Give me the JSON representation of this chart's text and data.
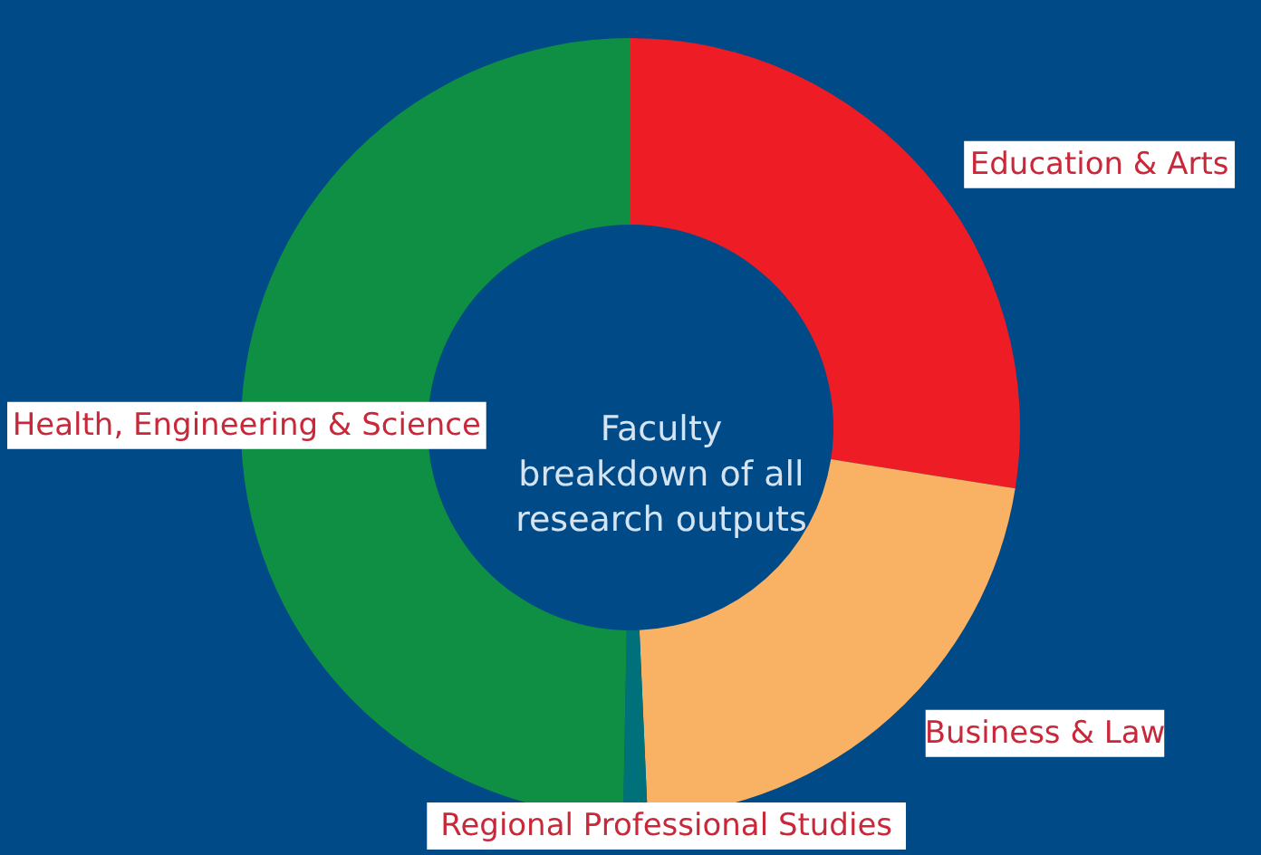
{
  "chart_data": {
    "type": "donut",
    "title": "Faculty\nbreakdown of all\nresearch outputs",
    "categories": [
      "Education & Arts",
      "Business & Law",
      "Regional Professional Studies",
      "Health, Engineering & Science"
    ],
    "values": [
      27.5,
      21.8,
      1.0,
      49.7
    ],
    "colors": [
      "#ee1c25",
      "#f9b264",
      "#00717a",
      "#0e8f43"
    ]
  }
}
